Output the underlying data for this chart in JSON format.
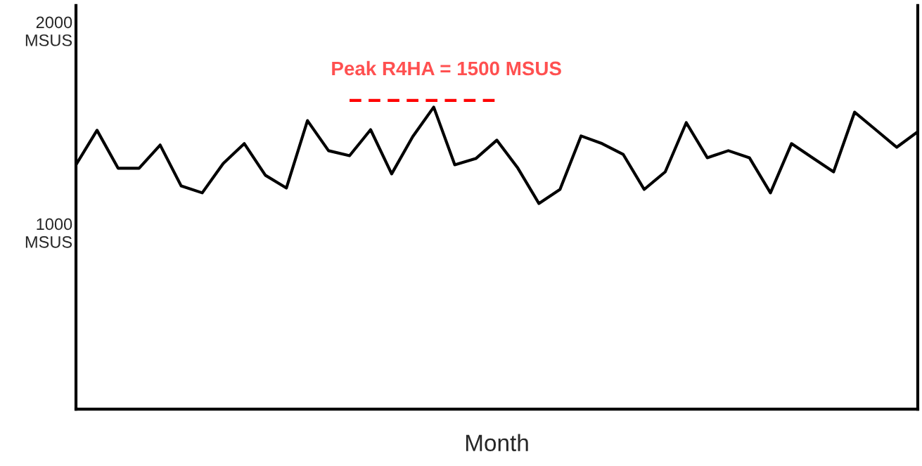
{
  "chart_data": {
    "type": "line",
    "xlabel": "Month",
    "annotations": [
      "Peak R4HA = 1500 MSUS"
    ],
    "categories": [
      null,
      null,
      null,
      null,
      null,
      null,
      null,
      null,
      null,
      null,
      null,
      null,
      null,
      null,
      null,
      null,
      null,
      null,
      null,
      null,
      null,
      null,
      null,
      null,
      null,
      null,
      null,
      null,
      null,
      null,
      null,
      null,
      null,
      null,
      null,
      null,
      null,
      null,
      null,
      null,
      null
    ],
    "ylim": [
      120,
      2120
    ],
    "yticks": [
      {
        "value": 1000,
        "label": "1000\nMSUS"
      },
      {
        "value": 2000,
        "label": "2000\nMSUS"
      }
    ],
    "tick_labels": "y",
    "grid": false,
    "series": [
      {
        "color": "#000000",
        "values": [
          1331,
          1502,
          1314,
          1314,
          1429,
          1226,
          1192,
          1338,
          1436,
          1279,
          1216,
          1550,
          1401,
          1376,
          1505,
          1286,
          1470,
          1617,
          1331,
          1362,
          1453,
          1314,
          1139,
          1209,
          1474,
          1436,
          1383,
          1209,
          1296,
          1540,
          1366,
          1401,
          1366,
          1192,
          1436,
          1366,
          1296,
          1592,
          1505,
          1418,
          1495
        ]
      },
      {
        "color": "#ff0000",
        "line_style": "dashed",
        "values": [
          null,
          null,
          null,
          null,
          null,
          null,
          null,
          null,
          null,
          null,
          null,
          null,
          null,
          1650,
          1650,
          1650,
          1650,
          1650,
          1650,
          1650,
          1650,
          null,
          null,
          null,
          null,
          null,
          null,
          null,
          null,
          null,
          null,
          null,
          null,
          null,
          null,
          null,
          null,
          null,
          null,
          null,
          null
        ]
      }
    ]
  }
}
